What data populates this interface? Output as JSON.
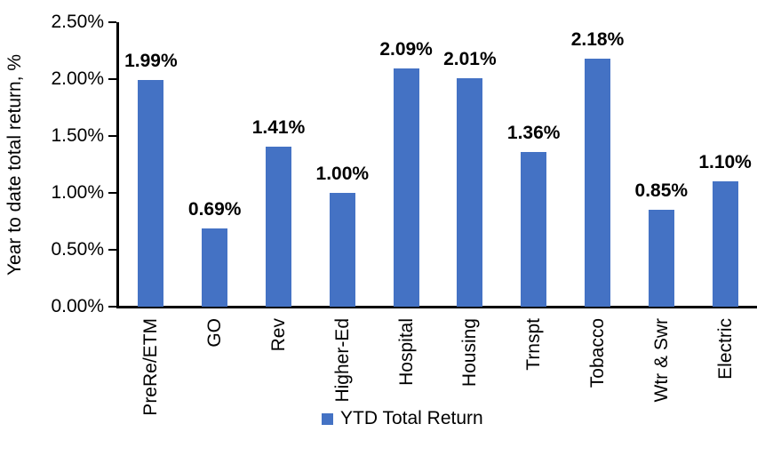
{
  "chart_data": {
    "type": "bar",
    "title": "",
    "xlabel": "",
    "ylabel": "Year to date total return, %",
    "categories": [
      "PreRe/ETM",
      "GO",
      "Rev",
      "Higher-Ed",
      "Hospital",
      "Housing",
      "Trnspt",
      "Tobacco",
      "Wtr & Swr",
      "Electric"
    ],
    "values": [
      1.99,
      0.69,
      1.41,
      1.0,
      2.09,
      2.01,
      1.36,
      2.18,
      0.85,
      1.1
    ],
    "value_labels": [
      "1.99%",
      "0.69%",
      "1.41%",
      "1.00%",
      "2.09%",
      "2.01%",
      "1.36%",
      "2.18%",
      "0.85%",
      "1.10%"
    ],
    "y_ticks": [
      "0.00%",
      "0.50%",
      "1.00%",
      "1.50%",
      "2.00%",
      "2.50%"
    ],
    "y_tick_values": [
      0,
      0.5,
      1.0,
      1.5,
      2.0,
      2.5
    ],
    "ylim": [
      0,
      2.5
    ],
    "grid": false,
    "legend": {
      "position": "bottom",
      "entries": [
        {
          "label": "YTD Total Return",
          "color": "#4472C4"
        }
      ]
    }
  },
  "colors": {
    "bar": "#4472C4",
    "axis": "#000000",
    "text": "#000000",
    "background": "#FFFFFF"
  }
}
